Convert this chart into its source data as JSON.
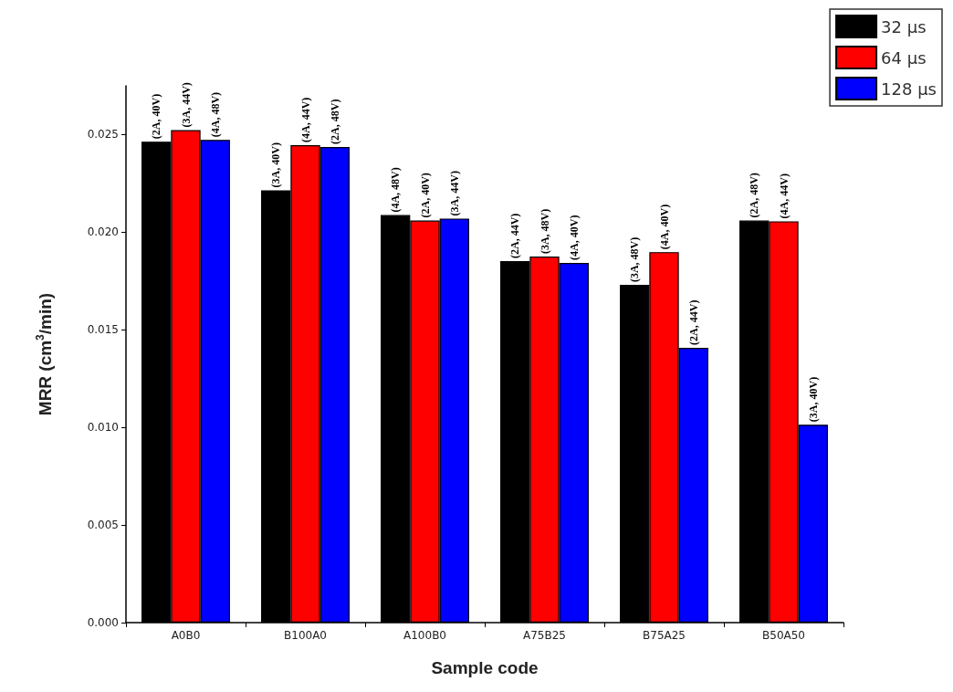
{
  "chart_data": {
    "type": "bar",
    "xlabel": "Sample code",
    "ylabel": "MRR (cm$^{3}$/min)",
    "categories": [
      "A0B0",
      "B100A0",
      "A100B0",
      "A75B25",
      "B75A25",
      "B50A50"
    ],
    "series": [
      {
        "name": "32 µs",
        "color": "#000000",
        "values": [
          0.02464,
          0.02215,
          0.02088,
          0.01852,
          0.0173,
          0.0206
        ],
        "value_labels": [
          "(2A, 40V)",
          "(3A, 40V)",
          "(4A, 48V)",
          "(2A, 44V)",
          "(3A, 48V)",
          "(2A, 48V)"
        ]
      },
      {
        "name": "64 µs",
        "color": "#ff0000",
        "values": [
          0.02523,
          0.02446,
          0.0206,
          0.01875,
          0.01898,
          0.02056
        ],
        "value_labels": [
          "(3A, 44V)",
          "(4A, 44V)",
          "(2A, 40V)",
          "(3A, 48V)",
          "(4A, 40V)",
          "(4A, 44V)"
        ]
      },
      {
        "name": "128 µs",
        "color": "#0000ff",
        "values": [
          0.02473,
          0.02437,
          0.0207,
          0.01843,
          0.01408,
          0.01014
        ],
        "value_labels": [
          "(4A, 48V)",
          "(2A, 48V)",
          "(3A, 44V)",
          "(4A, 40V)",
          "(2A, 44V)",
          "(3A, 40V)"
        ]
      }
    ],
    "ylim": [
      0,
      0.0275
    ],
    "yticks": [
      {
        "value": 0,
        "label": "0.000"
      },
      0.005,
      {
        "value": 0.01,
        "label": "0.010"
      },
      0.015,
      {
        "value": 0.02,
        "label": "0.020"
      },
      0.025
    ],
    "grid": false,
    "legend": "top right"
  }
}
